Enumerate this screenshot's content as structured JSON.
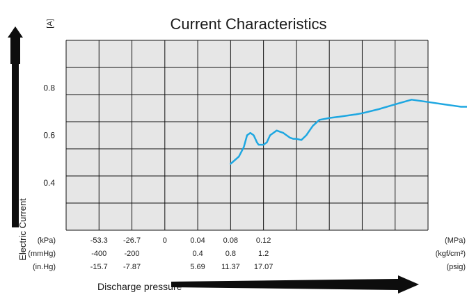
{
  "chart_data": {
    "type": "line",
    "title": "Current Characteristics",
    "y_unit": "[A]",
    "ylabel": "Electric Current",
    "xlabel": "Discharge pressure",
    "ylim": [
      0.2,
      1.0
    ],
    "y_ticks": [
      "0.4",
      "0.6",
      "0.8"
    ],
    "y_tick_values": [
      0.4,
      0.6,
      0.8
    ],
    "grid": true,
    "plot_background": "#e6e6e6",
    "line_color": "#1ea7e1",
    "x_columns": 11,
    "axis_rows": [
      {
        "unit_left": "(kPa)",
        "unit_right": "(MPa)",
        "ticks": [
          "-53.3",
          "-26.7",
          "0",
          "0.04",
          "0.08",
          "0.12"
        ]
      },
      {
        "unit_left": "(mmHg)",
        "unit_right": "(kgf/cm²)",
        "ticks": [
          "-400",
          "-200",
          "",
          "0.4",
          "0.8",
          "1.2"
        ]
      },
      {
        "unit_left": "(in.Hg)",
        "unit_right": "(psig)",
        "ticks": [
          "-15.7",
          "-7.87",
          "",
          "5.69",
          "11.37",
          "17.07"
        ]
      }
    ],
    "series": [
      {
        "x": [
          -2.0,
          -1.5,
          -1.2,
          -1.0,
          -0.8,
          -0.6,
          -0.4,
          -0.3,
          0,
          0.2,
          0.4,
          0.6,
          0.8,
          1.0,
          1.2,
          1.4,
          1.6,
          1.8,
          2.0,
          2.3,
          2.6,
          2.8,
          3.0,
          3.4,
          3.8,
          4.0,
          4.6,
          5.0,
          5.3,
          5.6,
          6.0,
          7.0,
          8.0,
          9.0,
          10.0,
          11.0,
          11.5,
          12.0,
          12.5,
          12.8,
          13.0
        ],
        "y": [
          0.48,
          0.51,
          0.55,
          0.6,
          0.61,
          0.6,
          0.57,
          0.56,
          0.56,
          0.57,
          0.6,
          0.61,
          0.62,
          0.615,
          0.61,
          0.6,
          0.59,
          0.585,
          0.585,
          0.58,
          0.6,
          0.62,
          0.64,
          0.665,
          0.67,
          0.673,
          0.678,
          0.682,
          0.685,
          0.688,
          0.693,
          0.71,
          0.73,
          0.75,
          0.74,
          0.73,
          0.725,
          0.72,
          0.72,
          0.725,
          0.73
        ]
      }
    ]
  }
}
